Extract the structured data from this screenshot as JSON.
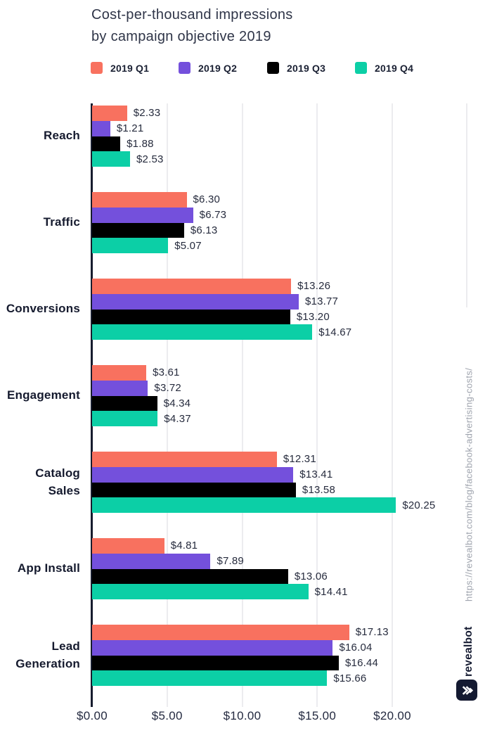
{
  "title": {
    "line1": "Cost-per-thousand impressions",
    "line2": "by campaign objective 2019"
  },
  "legend": {
    "items": [
      {
        "label": "2019 Q1",
        "color": "#f8715f"
      },
      {
        "label": "2019 Q2",
        "color": "#7450dc"
      },
      {
        "label": "2019 Q3",
        "color": "#000000"
      },
      {
        "label": "2019 Q4",
        "color": "#0ccfa6"
      }
    ]
  },
  "chart_data": {
    "type": "bar",
    "orientation": "horizontal",
    "title": "Cost-per-thousand impressions by campaign objective 2019",
    "categories": [
      "Reach",
      "Traffic",
      "Conversions",
      "Engagement",
      "Catalog Sales",
      "App Install",
      "Lead Generation"
    ],
    "series": [
      {
        "name": "2019 Q1",
        "color": "#f8715f",
        "values": [
          2.33,
          6.3,
          13.26,
          3.61,
          12.31,
          4.81,
          17.13
        ]
      },
      {
        "name": "2019 Q2",
        "color": "#7450dc",
        "values": [
          1.21,
          6.73,
          13.77,
          3.72,
          13.41,
          7.89,
          16.04
        ]
      },
      {
        "name": "2019 Q3",
        "color": "#000000",
        "values": [
          1.88,
          6.13,
          13.2,
          4.34,
          13.58,
          13.06,
          16.44
        ]
      },
      {
        "name": "2019 Q4",
        "color": "#0ccfa6",
        "values": [
          2.53,
          5.07,
          14.67,
          4.37,
          20.25,
          14.41,
          15.66
        ]
      }
    ],
    "value_prefix": "$",
    "x_ticks": {
      "values": [
        0,
        5,
        10,
        15,
        20
      ],
      "labels": [
        "$0.00",
        "$5.00",
        "$10.00",
        "$15.00",
        "$20.00"
      ]
    },
    "xlim": [
      0,
      25
    ],
    "grid": "vertical",
    "legend_position": "top",
    "data_labels": "outside-end"
  },
  "branding": {
    "url": "https://revealbot.com/blog/facebook-advertising-costs/",
    "wordmark": "revealbot",
    "logo_icon": "triple-chevron-right-icon",
    "logo_color": "#141a31"
  },
  "colors": {
    "background": "#ffffff",
    "axis": "#171c2e",
    "grid": "#ececef",
    "title_text": "#2f3548",
    "label_text": "#151a2e",
    "value_text": "#262b3d",
    "url_text": "#9ea3ad"
  }
}
